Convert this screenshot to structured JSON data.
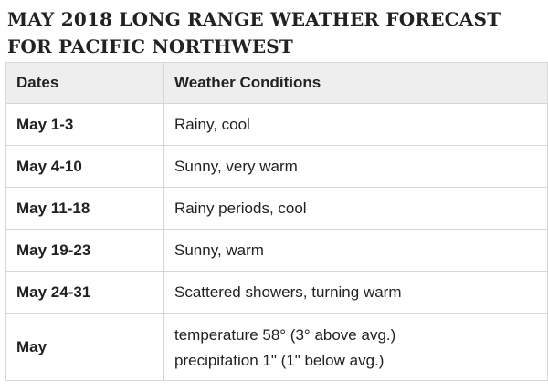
{
  "page": {
    "title": "MAY 2018 LONG RANGE WEATHER FORECAST FOR PACIFIC NORTHWEST"
  },
  "table": {
    "headers": {
      "dates": "Dates",
      "conditions": "Weather Conditions"
    },
    "rows": [
      {
        "dates": "May 1-3",
        "conditions": "Rainy, cool"
      },
      {
        "dates": "May 4-10",
        "conditions": "Sunny, very warm"
      },
      {
        "dates": "May 11-18",
        "conditions": "Rainy periods, cool"
      },
      {
        "dates": "May 19-23",
        "conditions": "Sunny, warm"
      },
      {
        "dates": "May 24-31",
        "conditions": "Scattered showers, turning warm"
      },
      {
        "dates": "May",
        "conditions_lines": [
          "temperature 58° (3° above avg.)",
          "precipitation 1\" (1\" below avg.)"
        ]
      }
    ]
  },
  "colors": {
    "header_bg": "#eeeeee",
    "border": "#d6d6d6",
    "text": "#222222"
  }
}
